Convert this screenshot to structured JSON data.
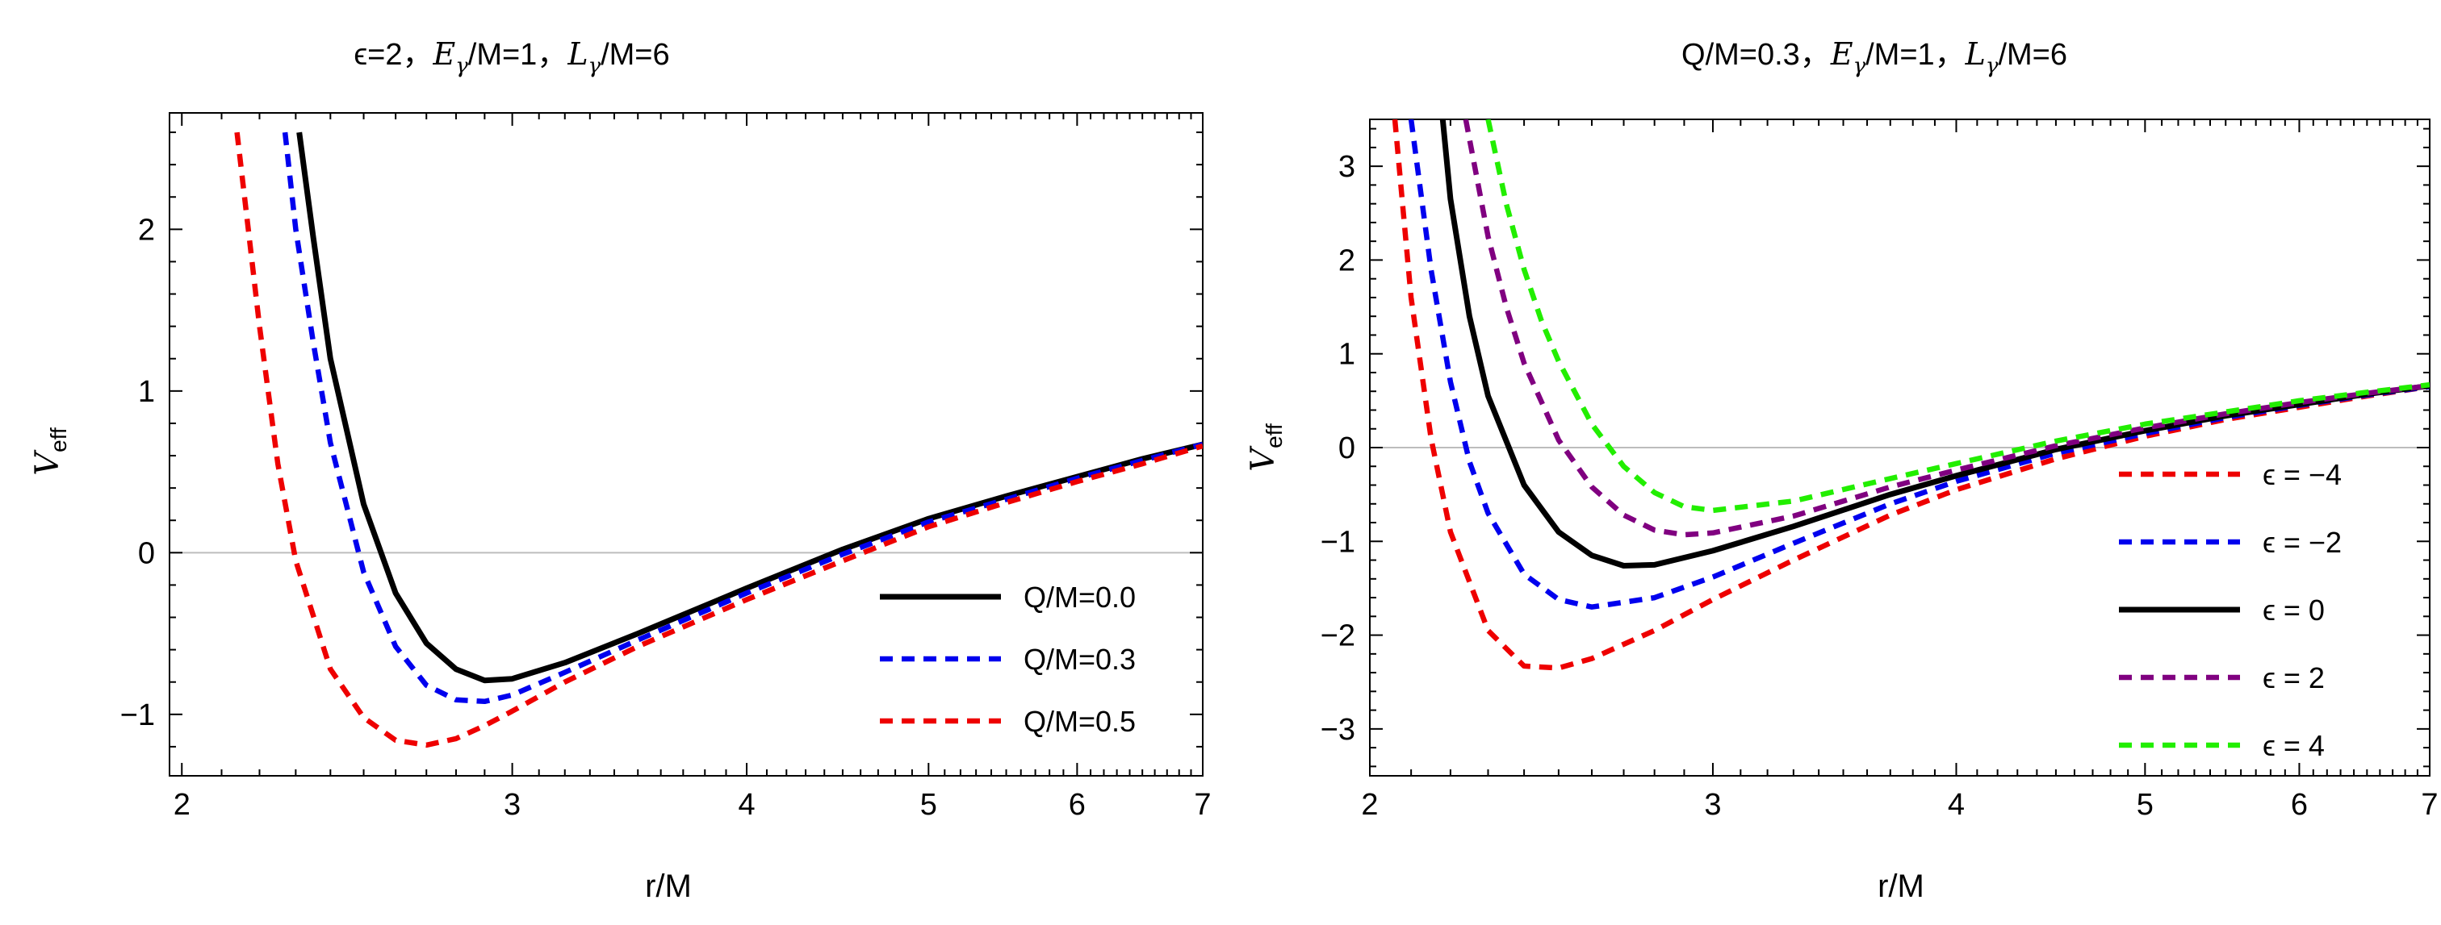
{
  "chart_data": [
    {
      "type": "line",
      "title_parts": [
        "ϵ=2，",
        "E",
        "γ",
        "/M=1，",
        "L",
        "γ",
        "/M=6"
      ],
      "title": "ϵ=2，Eγ/M=1，Lγ/M=6",
      "xlabel": "r/M",
      "ylabel_main": "V",
      "ylabel_sub": "eff",
      "xscale": "log",
      "xlim": [
        1.97,
        7.0
      ],
      "ylim": [
        -1.38,
        2.72
      ],
      "xticks": [
        2,
        3,
        4,
        5,
        6,
        7
      ],
      "xtick_labels": [
        "2",
        "3",
        "4",
        "5",
        "6",
        "7"
      ],
      "yticks": [
        -1,
        0,
        1,
        2
      ],
      "ytick_labels": [
        "−1",
        "0",
        "1",
        "2"
      ],
      "legend_position": "center-right",
      "series": [
        {
          "name": "Q/M=0.0",
          "color": "#000000",
          "dash": "solid",
          "x": [
            2.31,
            2.35,
            2.4,
            2.5,
            2.6,
            2.7,
            2.8,
            2.9,
            3.0,
            3.2,
            3.5,
            4.0,
            4.5,
            5.0,
            5.5,
            6.0,
            6.5,
            7.0
          ],
          "y": [
            2.6,
            1.95,
            1.2,
            0.3,
            -0.25,
            -0.56,
            -0.72,
            -0.79,
            -0.78,
            -0.68,
            -0.5,
            -0.22,
            0.02,
            0.21,
            0.35,
            0.47,
            0.58,
            0.67
          ]
        },
        {
          "name": "Q/M=0.3",
          "color": "#0000ee",
          "dash": "dashed",
          "x": [
            2.27,
            2.3,
            2.35,
            2.4,
            2.5,
            2.6,
            2.7,
            2.8,
            2.9,
            3.0,
            3.2,
            3.5,
            4.0,
            4.5,
            5.0,
            5.5,
            6.0,
            6.5,
            7.0
          ],
          "y": [
            2.6,
            2.0,
            1.3,
            0.68,
            -0.12,
            -0.58,
            -0.82,
            -0.91,
            -0.92,
            -0.88,
            -0.74,
            -0.54,
            -0.25,
            -0.01,
            0.19,
            0.33,
            0.46,
            0.57,
            0.67
          ]
        },
        {
          "name": "Q/M=0.5",
          "color": "#ee0000",
          "dash": "dashed",
          "x": [
            2.14,
            2.17,
            2.2,
            2.25,
            2.3,
            2.4,
            2.5,
            2.6,
            2.7,
            2.8,
            2.9,
            3.0,
            3.2,
            3.5,
            4.0,
            4.5,
            5.0,
            5.5,
            6.0,
            6.5,
            7.0
          ],
          "y": [
            2.6,
            2.0,
            1.4,
            0.55,
            -0.05,
            -0.72,
            -1.02,
            -1.16,
            -1.19,
            -1.15,
            -1.07,
            -0.98,
            -0.8,
            -0.58,
            -0.29,
            -0.05,
            0.16,
            0.31,
            0.44,
            0.55,
            0.66
          ]
        }
      ]
    },
    {
      "type": "line",
      "title_parts": [
        "Q/M=0.3，",
        "E",
        "γ",
        "/M=1，",
        "L",
        "γ",
        "/M=6"
      ],
      "title": "Q/M=0.3，Eγ/M=1，Lγ/M=6",
      "xlabel": "r/M",
      "ylabel_main": "V",
      "ylabel_sub": "eff",
      "xscale": "log",
      "xlim": [
        2.0,
        7.0
      ],
      "ylim": [
        -3.5,
        3.5
      ],
      "xticks": [
        2,
        3,
        4,
        5,
        6,
        7
      ],
      "xtick_labels": [
        "2",
        "3",
        "4",
        "5",
        "6",
        "7"
      ],
      "yticks": [
        -3,
        -2,
        -1,
        0,
        1,
        2,
        3
      ],
      "ytick_labels": [
        "−3",
        "−2",
        "−1",
        "0",
        "1",
        "2",
        "3"
      ],
      "legend_position": "right",
      "series": [
        {
          "name": "ϵ = −4",
          "color": "#ee0000",
          "dash": "dashed",
          "x": [
            2.06,
            2.1,
            2.15,
            2.2,
            2.3,
            2.4,
            2.5,
            2.6,
            2.8,
            3.0,
            3.3,
            3.7,
            4.0,
            4.5,
            5.0,
            5.5,
            6.0,
            6.5,
            7.0
          ],
          "y": [
            3.5,
            1.6,
            0.1,
            -0.9,
            -1.95,
            -2.33,
            -2.35,
            -2.25,
            -1.95,
            -1.62,
            -1.2,
            -0.72,
            -0.45,
            -0.12,
            0.12,
            0.3,
            0.43,
            0.55,
            0.65
          ]
        },
        {
          "name": "ϵ = −2",
          "color": "#0000ee",
          "dash": "dashed",
          "x": [
            2.1,
            2.15,
            2.2,
            2.25,
            2.3,
            2.4,
            2.5,
            2.6,
            2.8,
            3.0,
            3.3,
            3.7,
            4.0,
            4.5,
            5.0,
            5.5,
            6.0,
            6.5,
            7.0
          ],
          "y": [
            3.5,
            1.9,
            0.7,
            -0.15,
            -0.7,
            -1.35,
            -1.62,
            -1.7,
            -1.6,
            -1.38,
            -1.02,
            -0.6,
            -0.36,
            -0.06,
            0.15,
            0.32,
            0.45,
            0.56,
            0.65
          ]
        },
        {
          "name": "ϵ = 0",
          "color": "#000000",
          "dash": "solid",
          "x": [
            2.18,
            2.2,
            2.25,
            2.3,
            2.4,
            2.5,
            2.6,
            2.7,
            2.8,
            3.0,
            3.3,
            3.7,
            4.0,
            4.5,
            5.0,
            5.5,
            6.0,
            6.5,
            7.0
          ],
          "y": [
            3.5,
            2.65,
            1.4,
            0.55,
            -0.4,
            -0.9,
            -1.15,
            -1.26,
            -1.25,
            -1.1,
            -0.84,
            -0.5,
            -0.3,
            -0.02,
            0.18,
            0.34,
            0.46,
            0.57,
            0.66
          ]
        },
        {
          "name": "ϵ = 2",
          "color": "#800080",
          "dash": "dashed",
          "x": [
            2.24,
            2.3,
            2.35,
            2.4,
            2.5,
            2.6,
            2.7,
            2.8,
            2.9,
            3.0,
            3.3,
            3.7,
            4.0,
            4.5,
            5.0,
            5.5,
            6.0,
            6.5,
            7.0
          ],
          "y": [
            3.5,
            2.25,
            1.5,
            0.9,
            0.08,
            -0.42,
            -0.72,
            -0.88,
            -0.93,
            -0.91,
            -0.73,
            -0.42,
            -0.24,
            0.02,
            0.21,
            0.36,
            0.48,
            0.58,
            0.66
          ]
        },
        {
          "name": "ϵ = 4",
          "color": "#22ee00",
          "dash": "dashed",
          "x": [
            2.3,
            2.35,
            2.4,
            2.45,
            2.5,
            2.6,
            2.7,
            2.8,
            2.9,
            3.0,
            3.3,
            3.7,
            4.0,
            4.5,
            5.0,
            5.5,
            6.0,
            6.5,
            7.0
          ],
          "y": [
            3.5,
            2.6,
            1.9,
            1.35,
            0.92,
            0.25,
            -0.2,
            -0.48,
            -0.63,
            -0.67,
            -0.57,
            -0.33,
            -0.17,
            0.07,
            0.25,
            0.38,
            0.5,
            0.59,
            0.67
          ]
        }
      ]
    }
  ]
}
